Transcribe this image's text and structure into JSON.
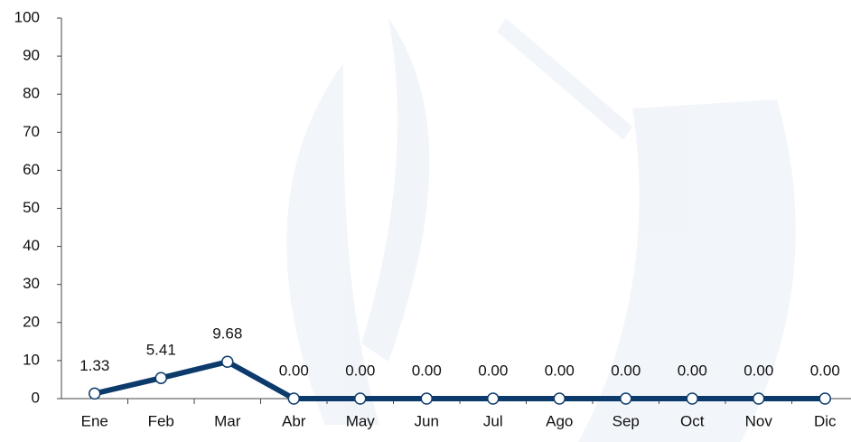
{
  "chart_data": {
    "type": "line",
    "categories": [
      "Ene",
      "Feb",
      "Mar",
      "Abr",
      "May",
      "Jun",
      "Jul",
      "Ago",
      "Sep",
      "Oct",
      "Nov",
      "Dic"
    ],
    "values": [
      1.33,
      5.41,
      9.68,
      0,
      0,
      0,
      0,
      0,
      0,
      0,
      0,
      0
    ],
    "value_labels": [
      "1.33",
      "5.41",
      "9.68",
      "0.00",
      "0.00",
      "0.00",
      "0.00",
      "0.00",
      "0.00",
      "0.00",
      "0.00",
      "0.00"
    ],
    "color": "#0b3a6b",
    "ylim": [
      0,
      100
    ],
    "yticks": [
      0,
      10,
      20,
      30,
      40,
      50,
      60,
      70,
      80,
      90,
      100
    ],
    "grid": false
  }
}
